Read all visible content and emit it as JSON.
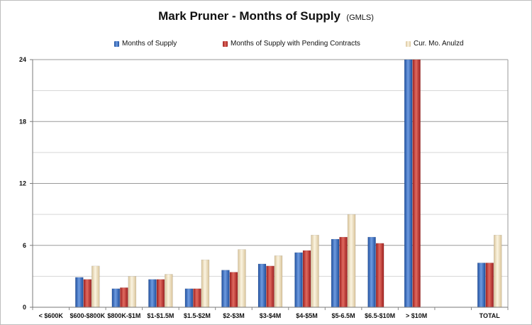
{
  "chart_data": {
    "type": "bar",
    "title": "Mark Pruner - Months of Supply",
    "subtitle": "(GMLS)",
    "xlabel": "",
    "ylabel": "",
    "ylim": [
      0,
      24
    ],
    "yticks": [
      "0",
      "6",
      "12",
      "18",
      "24"
    ],
    "grid": true,
    "legend_position": "top",
    "categories": [
      "< $600K",
      "$600-$800K",
      "$800K-$1M",
      "$1-$1.5M",
      "$1.5-$2M",
      "$2-$3M",
      "$3-$4M",
      "$4-$5M",
      "$5-6.5M",
      "$6.5-$10M",
      "> $10M",
      "",
      "TOTAL"
    ],
    "series": [
      {
        "name": "Months of Supply",
        "color": "#3a6fc4",
        "values": [
          0,
          2.9,
          1.8,
          2.7,
          1.8,
          3.6,
          4.2,
          5.3,
          6.6,
          6.8,
          24,
          null,
          4.3
        ]
      },
      {
        "name": "Months of Supply with Pending Contracts",
        "color": "#c8302c",
        "values": [
          0,
          2.7,
          1.9,
          2.7,
          1.8,
          3.4,
          4.0,
          5.5,
          6.8,
          6.2,
          24,
          null,
          4.3
        ]
      },
      {
        "name": "Cur. Mo. Anulzd",
        "color": "#e6d6b0",
        "values": [
          0,
          4.0,
          3.0,
          3.2,
          4.6,
          5.6,
          5.0,
          7.0,
          9.0,
          0,
          0,
          null,
          7.0
        ]
      }
    ]
  }
}
